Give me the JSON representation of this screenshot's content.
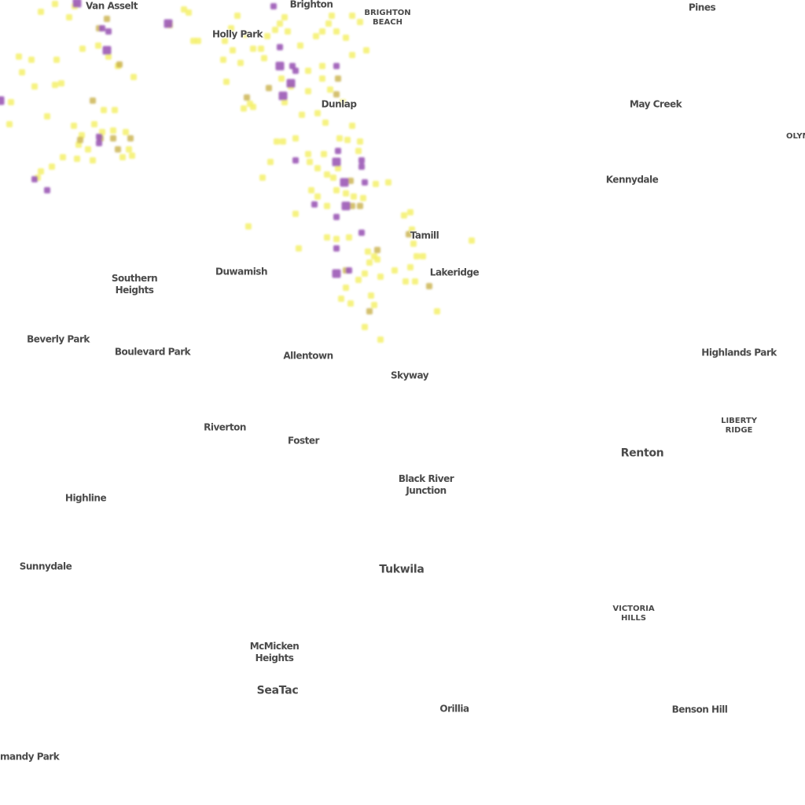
{
  "map": {
    "colors": {
      "label_text": "#4a4a4a",
      "background": "#ffffff",
      "heat_low": "#f4f06a",
      "heat_mid": "#c9b04a",
      "heat_high": "#9b59b6"
    },
    "neighborhoods": [
      {
        "id": "van-asselt",
        "text": "Van Asselt"
      },
      {
        "id": "brighton",
        "text": "Brighton"
      },
      {
        "id": "brighton-beach",
        "text": "BRIGHTON\nBEACH"
      },
      {
        "id": "pines",
        "text": "Pines"
      },
      {
        "id": "holly-park",
        "text": "Holly Park"
      },
      {
        "id": "dunlap",
        "text": "Dunlap"
      },
      {
        "id": "may-creek",
        "text": "May Creek"
      },
      {
        "id": "olympic",
        "text": "OLYM"
      },
      {
        "id": "kennydale",
        "text": "Kennydale"
      },
      {
        "id": "tamill",
        "text": "Tamill"
      },
      {
        "id": "lakeridge",
        "text": "Lakeridge"
      },
      {
        "id": "duwamish",
        "text": "Duwamish"
      },
      {
        "id": "southern-heights",
        "text": "Southern\nHeights"
      },
      {
        "id": "beverly-park",
        "text": "Beverly Park"
      },
      {
        "id": "boulevard-park",
        "text": "Boulevard Park"
      },
      {
        "id": "allentown",
        "text": "Allentown"
      },
      {
        "id": "skyway",
        "text": "Skyway"
      },
      {
        "id": "highlands-park",
        "text": "Highlands Park"
      },
      {
        "id": "liberty-ridge",
        "text": "LIBERTY\nRIDGE"
      },
      {
        "id": "riverton",
        "text": "Riverton"
      },
      {
        "id": "foster",
        "text": "Foster"
      },
      {
        "id": "renton",
        "text": "Renton"
      },
      {
        "id": "black-river-junction",
        "text": "Black River\nJunction"
      },
      {
        "id": "highline",
        "text": "Highline"
      },
      {
        "id": "sunnydale",
        "text": "Sunnydale"
      },
      {
        "id": "tukwila",
        "text": "Tukwila"
      },
      {
        "id": "victoria-hills",
        "text": "VICTORIA\nHILLS"
      },
      {
        "id": "mcmicken-heights",
        "text": "McMicken\nHeights"
      },
      {
        "id": "seatac",
        "text": "SeaTac"
      },
      {
        "id": "orillia",
        "text": "Orillia"
      },
      {
        "id": "benson-hill",
        "text": "Benson Hill"
      },
      {
        "id": "normandy-park",
        "text": "mandy Park"
      }
    ]
  }
}
